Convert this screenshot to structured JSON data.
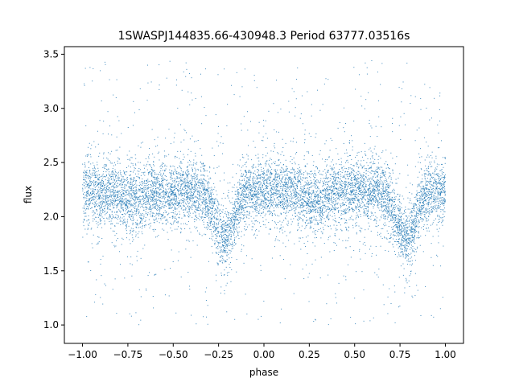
{
  "chart_data": {
    "type": "scatter",
    "title": "1SWASPJ144835.66-430948.3 Period 63777.03516s",
    "xlabel": "phase",
    "ylabel": "flux",
    "xlim": [
      -1.1,
      1.1
    ],
    "ylim": [
      0.83,
      3.57
    ],
    "x_ticks": [
      -1.0,
      -0.75,
      -0.5,
      -0.25,
      0.0,
      0.25,
      0.5,
      0.75,
      1.0
    ],
    "x_tick_labels": [
      "−1.00",
      "−0.75",
      "−0.50",
      "−0.25",
      "0.00",
      "0.25",
      "0.50",
      "0.75",
      "1.00"
    ],
    "y_ticks": [
      1.0,
      1.5,
      2.0,
      2.5,
      3.0,
      3.5
    ],
    "y_tick_labels": [
      "1.0",
      "1.5",
      "2.0",
      "2.5",
      "3.0",
      "3.5"
    ],
    "grid": false,
    "marker_color": "#1f77b4",
    "series": [
      {
        "x_range": [
          -1.0,
          1.0
        ],
        "baseline_flux": 2.23,
        "primary_eclipse": {
          "phases": [
            -0.22,
            0.78
          ],
          "min_flux": 1.8,
          "width": 0.05
        },
        "secondary_eclipse": {
          "phases": [
            -0.72,
            0.28
          ],
          "min_flux": 2.15,
          "width": 0.05
        },
        "scatter_sigma": 0.14,
        "outlier_range": [
          1.0,
          3.45
        ]
      }
    ]
  }
}
